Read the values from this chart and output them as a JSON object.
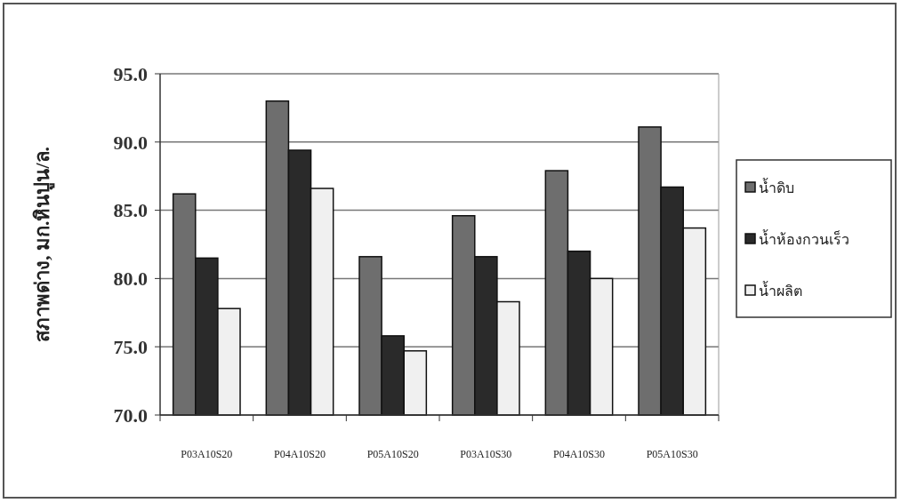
{
  "chart_data": {
    "type": "bar",
    "ylabel": "สภาพด่าง, มก.หินปูน/ล.",
    "categories": [
      "P03A10S20",
      "P04A10S20",
      "P05A10S20",
      "P03A10S30",
      "P04A10S30",
      "P05A10S30"
    ],
    "series": [
      {
        "name": "น้ำดิบ",
        "color": "#6e6e6e",
        "values": [
          86.2,
          93.0,
          81.6,
          84.6,
          87.9,
          91.1
        ]
      },
      {
        "name": "น้ำห้องกวนเร็ว",
        "color": "#2a2a2a",
        "values": [
          81.5,
          89.4,
          75.8,
          81.6,
          82.0,
          86.7
        ]
      },
      {
        "name": "น้ำผลิต",
        "color": "#f0f0f0",
        "values": [
          77.8,
          86.6,
          74.7,
          78.3,
          80.0,
          83.7
        ]
      }
    ],
    "ylim": [
      70,
      95
    ],
    "yticks": [
      {
        "value": 70,
        "label": "70.0"
      },
      {
        "value": 75,
        "label": "75.0"
      },
      {
        "value": 80,
        "label": "80.0"
      },
      {
        "value": 85,
        "label": "85.0"
      },
      {
        "value": 90,
        "label": "90.0"
      },
      {
        "value": 95,
        "label": "95.0"
      }
    ],
    "grid": "y",
    "legend": "right"
  }
}
